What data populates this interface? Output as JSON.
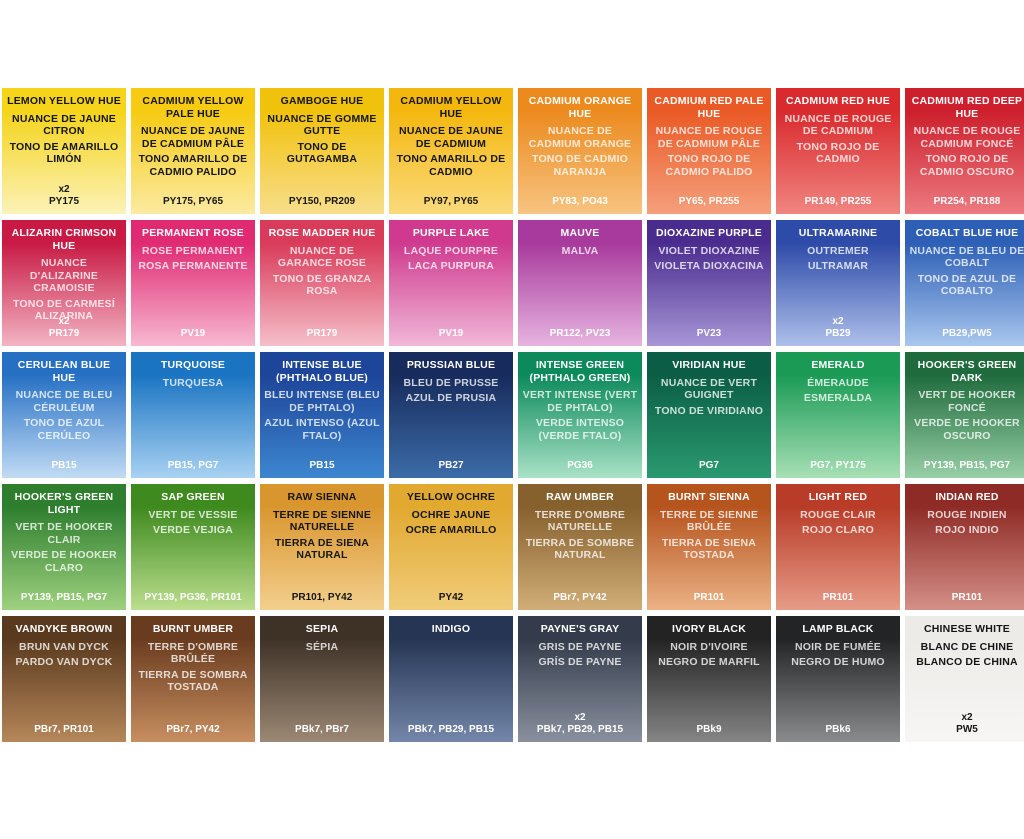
{
  "colors": [
    {
      "id": "lemon-yellow-hue",
      "en": "LEMON YELLOW HUE",
      "fr": "NUANCE DE JAUNE CITRON",
      "es": "TONO DE AMARILLO LIMÓN",
      "qty": "x2",
      "pigment": "PY175",
      "top": "#f5d41a",
      "bottom": "#fbf2b8",
      "text": "dark"
    },
    {
      "id": "cadmium-yellow-pale-hue",
      "en": "CADMIUM YELLOW PALE HUE",
      "fr": "NUANCE DE JAUNE DE CADMIUM PÂLE",
      "es": "TONO AMARILLO DE CADMIO PALIDO",
      "qty": "",
      "pigment": "PY175, PY65",
      "top": "#f6cb12",
      "bottom": "#fbeaa2",
      "text": "dark"
    },
    {
      "id": "gamboge-hue",
      "en": "GAMBOGE HUE",
      "fr": "NUANCE DE GOMME GUTTE",
      "es": "TONO DE GUTAGAMBA",
      "qty": "",
      "pigment": "PY150, PR209",
      "top": "#f1c20c",
      "bottom": "#f8de8c",
      "text": "dark"
    },
    {
      "id": "cadmium-yellow-hue",
      "en": "CADMIUM YELLOW HUE",
      "fr": "NUANCE DE JAUNE DE CADMIUM",
      "es": "TONO AMARILLO DE CADMIO",
      "qty": "",
      "pigment": "PY97, PY65",
      "top": "#f4b70e",
      "bottom": "#fbda7c",
      "text": "dark"
    },
    {
      "id": "cadmium-orange-hue",
      "en": "CADMIUM ORANGE HUE",
      "fr": "NUANCE DE CADMIUM ORANGE",
      "es": "TONO DE CADMIO NARANJA",
      "qty": "",
      "pigment": "PY83, PO43",
      "top": "#ec8a1e",
      "bottom": "#f7c481",
      "text": "light"
    },
    {
      "id": "cadmium-red-pale-hue",
      "en": "CADMIUM RED PALE HUE",
      "fr": "NUANCE DE ROUGE DE CADMIUM PÂLE",
      "es": "TONO ROJO DE CADMIO PALIDO",
      "qty": "",
      "pigment": "PY65, PR255",
      "top": "#ea5a26",
      "bottom": "#f59f7c",
      "text": "light"
    },
    {
      "id": "cadmium-red-hue",
      "en": "CADMIUM RED HUE",
      "fr": "NUANCE DE ROUGE DE CADMIUM",
      "es": "TONO ROJO DE CADMIO",
      "qty": "",
      "pigment": "PR149, PR255",
      "top": "#d92a2e",
      "bottom": "#f08580",
      "text": "light"
    },
    {
      "id": "cadmium-red-deep-hue",
      "en": "CADMIUM RED DEEP HUE",
      "fr": "NUANCE DE ROUGE CADMIUM FONCÉ",
      "es": "TONO ROJO DE CADMIO OSCURO",
      "qty": "",
      "pigment": "PR254, PR188",
      "top": "#cd1f2c",
      "bottom": "#ec7a80",
      "text": "light"
    },
    {
      "id": "alizarin-crimson-hue",
      "en": "ALIZARIN CRIMSON HUE",
      "fr": "NUANCE D'ALIZARINE CRAMOISIE",
      "es": "TONO DE CARMESÍ ALIZARINA",
      "qty": "x2",
      "pigment": "PR179",
      "top": "#c81a44",
      "bottom": "#f3b4c4",
      "text": "light"
    },
    {
      "id": "permanent-rose",
      "en": "PERMANENT ROSE",
      "fr": "ROSE PERMANENT",
      "es": "ROSA PERMANENTE",
      "qty": "",
      "pigment": "PV19",
      "top": "#e02a72",
      "bottom": "#f7b9d1",
      "text": "light"
    },
    {
      "id": "rose-madder-hue",
      "en": "ROSE MADDER HUE",
      "fr": "NUANCE DE GARANCE ROSE",
      "es": "TONO DE GRANZA ROSA",
      "qty": "",
      "pigment": "PR179",
      "top": "#d93b5a",
      "bottom": "#f5bfca",
      "text": "light"
    },
    {
      "id": "purple-lake",
      "en": "PURPLE LAKE",
      "fr": "LAQUE POURPRE",
      "es": "LACA PURPURA",
      "qty": "",
      "pigment": "PV19",
      "top": "#cf3a8e",
      "bottom": "#f0b8d8",
      "text": "light"
    },
    {
      "id": "mauve",
      "en": "MAUVE",
      "fr": "MALVA",
      "es": "",
      "qty": "",
      "pigment": "PR122, PV23",
      "top": "#a73a9c",
      "bottom": "#e6b4e0",
      "text": "light"
    },
    {
      "id": "dioxazine-purple",
      "en": "DIOXAZINE PURPLE",
      "fr": "VIOLET DIOXAZINE",
      "es": "VIOLETA DIOXACINA",
      "qty": "",
      "pigment": "PV23",
      "top": "#4a2c8e",
      "bottom": "#a796d6",
      "text": "light"
    },
    {
      "id": "ultramarine",
      "en": "ULTRAMARINE",
      "fr": "OUTREMER",
      "es": "ULTRAMAR",
      "qty": "x2",
      "pigment": "PB29",
      "top": "#2e4ba8",
      "bottom": "#aec0ea",
      "text": "light"
    },
    {
      "id": "cobalt-blue-hue",
      "en": "COBALT BLUE HUE",
      "fr": "NUANCE DE BLEU DE COBALT",
      "es": "TONO DE AZUL DE COBALTO",
      "qty": "",
      "pigment": "PB29,PW5",
      "top": "#2c5fb5",
      "bottom": "#a9c7ee",
      "text": "light"
    },
    {
      "id": "cerulean-blue-hue",
      "en": "CERULEAN BLUE HUE",
      "fr": "NUANCE DE BLEU CÉRULÉUM",
      "es": "TONO DE AZUL CERÚLEO",
      "qty": "",
      "pigment": "PB15",
      "top": "#2670c4",
      "bottom": "#c1dcf4",
      "text": "light"
    },
    {
      "id": "turquoise",
      "en": "TURQUOISE",
      "fr": "TURQUESA",
      "es": "",
      "qty": "",
      "pigment": "PB15, PG7",
      "top": "#1a74c2",
      "bottom": "#a8d2f2",
      "text": "light"
    },
    {
      "id": "intense-blue",
      "en": "INTENSE BLUE (PHTHALO BLUE)",
      "fr": "BLEU INTENSE (BLEU DE PHTALO)",
      "es": "AZUL INTENSO (AZUL FTALO)",
      "qty": "",
      "pigment": "PB15",
      "top": "#1d4599",
      "bottom": "#3d86cf",
      "text": "light"
    },
    {
      "id": "prussian-blue",
      "en": "PRUSSIAN BLUE",
      "fr": "BLEU DE PRUSSE",
      "es": "AZUL DE PRUSIA",
      "qty": "",
      "pigment": "PB27",
      "top": "#172b5c",
      "bottom": "#3c6ca8",
      "text": "light"
    },
    {
      "id": "intense-green",
      "en": "INTENSE GREEN (PHTHALO GREEN)",
      "fr": "VERT INTENSE (VERT DE PHTALO)",
      "es": "VERDE INTENSO (VERDE FTALO)",
      "qty": "",
      "pigment": "PG36",
      "top": "#0d8a5c",
      "bottom": "#a9e2c7",
      "text": "light"
    },
    {
      "id": "viridian-hue",
      "en": "VIRIDIAN HUE",
      "fr": "NUANCE DE VERT GUIGNET",
      "es": "TONO DE VIRIDIANO",
      "qty": "",
      "pigment": "PG7",
      "top": "#0b5e45",
      "bottom": "#2a9a70",
      "text": "light"
    },
    {
      "id": "emerald",
      "en": "EMERALD",
      "fr": "ÉMERAUDE",
      "es": "ESMERALDA",
      "qty": "",
      "pigment": "PG7, PY175",
      "top": "#1a9a55",
      "bottom": "#a7e0b4",
      "text": "light"
    },
    {
      "id": "hookers-green-dark",
      "en": "HOOKER'S GREEN DARK",
      "fr": "VERT DE HOOKER FONCÉ",
      "es": "VERDE DE HOOKER OSCURO",
      "qty": "",
      "pigment": "PY139, PB15, PG7",
      "top": "#1f6b3d",
      "bottom": "#98cfa6",
      "text": "light"
    },
    {
      "id": "hookers-green-light",
      "en": "HOOKER'S GREEN LIGHT",
      "fr": "VERT DE HOOKER CLAIR",
      "es": "VERDE DE HOOKER CLARO",
      "qty": "",
      "pigment": "PY139, PB15, PG7",
      "top": "#2e7e2e",
      "bottom": "#9fd27f",
      "text": "light"
    },
    {
      "id": "sap-green",
      "en": "SAP GREEN",
      "fr": "VERT DE VESSIE",
      "es": "VERDE VEJIGA",
      "qty": "",
      "pigment": "PY139, PG36, PR101",
      "top": "#3f8a1f",
      "bottom": "#bcdf8f",
      "text": "light"
    },
    {
      "id": "raw-sienna",
      "en": "RAW SIENNA",
      "fr": "TERRE DE SIENNE NATURELLE",
      "es": "TIERRA DE SIENA NATURAL",
      "qty": "",
      "pigment": "PR101, PY42",
      "top": "#d9962e",
      "bottom": "#f3cf8d",
      "text": "dark"
    },
    {
      "id": "yellow-ochre",
      "en": "YELLOW OCHRE",
      "fr": "OCHRE JAUNE",
      "es": "OCRE AMARILLO",
      "qty": "",
      "pigment": "PY42",
      "top": "#e1a92f",
      "bottom": "#f0cc7a",
      "text": "dark"
    },
    {
      "id": "raw-umber",
      "en": "RAW UMBER",
      "fr": "TERRE D'OMBRE NATURELLE",
      "es": "TIERRA DE SOMBRE NATURAL",
      "qty": "",
      "pigment": "PBr7, PY42",
      "top": "#86602d",
      "bottom": "#d1ae78",
      "text": "light"
    },
    {
      "id": "burnt-sienna",
      "en": "BURNT SIENNA",
      "fr": "TERRE DE SIENNE BRÛLÉE",
      "es": "TIERRA DE SIENA TOSTADA",
      "qty": "",
      "pigment": "PR101",
      "top": "#b6541e",
      "bottom": "#ebb285",
      "text": "light"
    },
    {
      "id": "light-red",
      "en": "LIGHT RED",
      "fr": "ROUGE CLAIR",
      "es": "ROJO CLARO",
      "qty": "",
      "pigment": "PR101",
      "top": "#b83c28",
      "bottom": "#e69c88",
      "text": "light"
    },
    {
      "id": "indian-red",
      "en": "INDIAN RED",
      "fr": "ROUGE INDIEN",
      "es": "ROJO INDIO",
      "qty": "",
      "pigment": "PR101",
      "top": "#8f2b26",
      "bottom": "#d49088",
      "text": "light"
    },
    {
      "id": "vandyke-brown",
      "en": "VANDYKE BROWN",
      "fr": "BRUN VAN DYCK",
      "es": "PARDO VAN DYCK",
      "qty": "",
      "pigment": "PBr7, PR101",
      "top": "#5a3a1e",
      "bottom": "#b6875a",
      "text": "light"
    },
    {
      "id": "burnt-umber",
      "en": "BURNT UMBER",
      "fr": "TERRE D'OMBRE BRÛLÉE",
      "es": "TIERRA DE SOMBRA TOSTADA",
      "qty": "",
      "pigment": "PBr7, PY42",
      "top": "#6a3c1f",
      "bottom": "#c78e60",
      "text": "light"
    },
    {
      "id": "sepia",
      "en": "SEPIA",
      "fr": "SÉPIA",
      "es": "",
      "qty": "",
      "pigment": "PBk7, PBr7",
      "top": "#3e3227",
      "bottom": "#9c8874",
      "text": "light"
    },
    {
      "id": "indigo",
      "en": "INDIGO",
      "fr": "",
      "es": "",
      "qty": "",
      "pigment": "PBk7, PB29, PB15",
      "top": "#263553",
      "bottom": "#7487aa",
      "text": "light"
    },
    {
      "id": "paynes-gray",
      "en": "PAYNE'S GRAY",
      "fr": "GRIS DE PAYNE",
      "es": "GRÍS DE PAYNE",
      "qty": "x2",
      "pigment": "PBk7, PB29, PB15",
      "top": "#343c4b",
      "bottom": "#8a909e",
      "text": "light"
    },
    {
      "id": "ivory-black",
      "en": "IVORY BLACK",
      "fr": "NOIR D'IVOIRE",
      "es": "NEGRO DE MARFIL",
      "qty": "",
      "pigment": "PBk9",
      "top": "#232323",
      "bottom": "#858585",
      "text": "light"
    },
    {
      "id": "lamp-black",
      "en": "LAMP BLACK",
      "fr": "NOIR DE FUMÉE",
      "es": "NEGRO DE HUMO",
      "qty": "",
      "pigment": "PBk6",
      "top": "#222425",
      "bottom": "#8a8b8d",
      "text": "light"
    },
    {
      "id": "chinese-white",
      "en": "CHINESE WHITE",
      "fr": "BLANC DE CHINE",
      "es": "BLANCO DE CHINA",
      "qty": "x2",
      "pigment": "PW5",
      "top": "#ecebe8",
      "bottom": "#f7f6f4",
      "text": "dark"
    }
  ]
}
